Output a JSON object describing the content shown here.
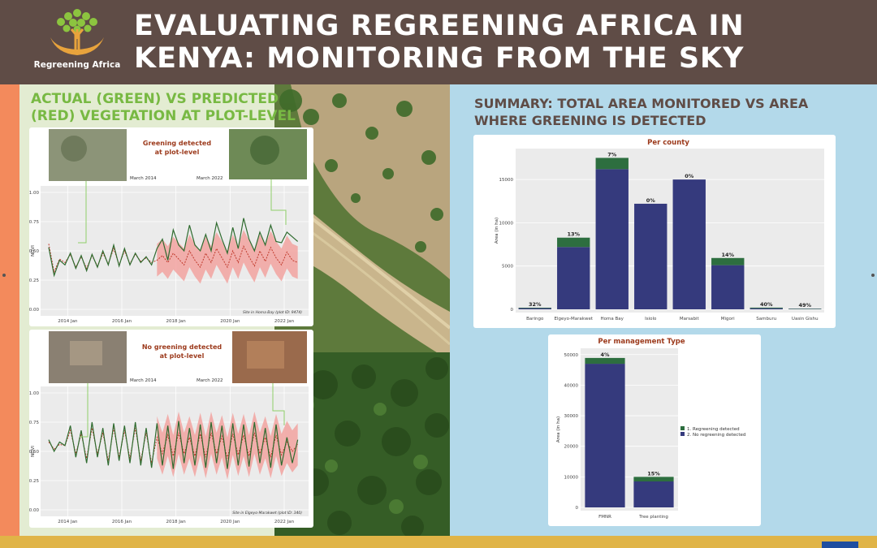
{
  "header": {
    "title_line1": "EVALUATING REGREENING AFRICA IN",
    "title_line2": "KENYA: MONITORING FROM THE SKY",
    "logo_text": "Regreening Africa",
    "logo_icon": "tree-hands-logo",
    "color": "#5f4c46"
  },
  "left_heading": {
    "line1": "ACTUAL (GREEN) VS PREDICTED",
    "line2": "(RED) VEGETATION AT PLOT-LEVEL",
    "color": "#78b943"
  },
  "right_heading": {
    "line1": "SUMMARY: TOTAL AREA MONITORED VS AREA",
    "line2": "WHERE GREENING IS DETECTED",
    "color": "#5f4c46"
  },
  "chart_data": [
    {
      "type": "line",
      "annotation_line1": "Greening detected",
      "annotation_line2": "at plot-level",
      "photo_label_left": "March 2014",
      "photo_label_right": "March 2022",
      "caption": "Site in Homa Bay (plot ID: 9474)",
      "ylabel": "NDVI",
      "ylim": [
        0,
        1
      ],
      "yticks": [
        "0.00",
        "0.25",
        "0.50",
        "0.75",
        "1.00"
      ],
      "xticks": [
        "2014 Jan",
        "2016 Jan",
        "2018 Jan",
        "2020 Jan",
        "2022 Jan"
      ],
      "xlim": [
        2013.0,
        2022.9
      ],
      "series": [
        {
          "color": "#2f6b2f",
          "x": [
            2013.3,
            2013.5,
            2013.7,
            2013.9,
            2014.1,
            2014.3,
            2014.5,
            2014.7,
            2014.9,
            2015.1,
            2015.3,
            2015.5,
            2015.7,
            2015.9,
            2016.1,
            2016.3,
            2016.5,
            2016.7,
            2016.9,
            2017.1,
            2017.3,
            2017.5,
            2017.7,
            2017.9,
            2018.1,
            2018.3,
            2018.5,
            2018.7,
            2018.9,
            2019.1,
            2019.3,
            2019.5,
            2019.7,
            2019.9,
            2020.1,
            2020.3,
            2020.5,
            2020.7,
            2020.9,
            2021.1,
            2021.3,
            2021.5,
            2021.7,
            2021.9,
            2022.1,
            2022.3,
            2022.5
          ],
          "values": [
            0.53,
            0.29,
            0.42,
            0.38,
            0.48,
            0.35,
            0.46,
            0.33,
            0.47,
            0.36,
            0.5,
            0.38,
            0.55,
            0.37,
            0.52,
            0.38,
            0.48,
            0.4,
            0.45,
            0.38,
            0.52,
            0.6,
            0.42,
            0.68,
            0.55,
            0.5,
            0.72,
            0.55,
            0.5,
            0.64,
            0.5,
            0.74,
            0.6,
            0.48,
            0.7,
            0.52,
            0.78,
            0.6,
            0.5,
            0.66,
            0.55,
            0.72,
            0.58,
            0.57,
            0.66,
            0.62,
            0.58
          ]
        },
        {
          "color": "#c0392b",
          "x": [
            2013.3,
            2013.5,
            2013.7,
            2013.9,
            2014.1,
            2014.3,
            2014.5,
            2014.7,
            2014.9,
            2015.1,
            2015.3,
            2015.5,
            2015.7,
            2015.9,
            2016.1,
            2016.3,
            2016.5,
            2016.7,
            2016.9,
            2017.1,
            2017.3,
            2017.5,
            2017.7,
            2017.9,
            2018.1,
            2018.3,
            2018.5,
            2018.7,
            2018.9,
            2019.1,
            2019.3,
            2019.5,
            2019.7,
            2019.9,
            2020.1,
            2020.3,
            2020.5,
            2020.7,
            2020.9,
            2021.1,
            2021.3,
            2021.5,
            2021.7,
            2021.9,
            2022.1,
            2022.3,
            2022.5
          ],
          "values": [
            0.56,
            0.32,
            0.43,
            0.4,
            0.47,
            0.36,
            0.45,
            0.35,
            0.46,
            0.37,
            0.48,
            0.39,
            0.52,
            0.38,
            0.5,
            0.39,
            0.47,
            0.41,
            0.44,
            0.4,
            0.42,
            0.46,
            0.4,
            0.48,
            0.43,
            0.38,
            0.5,
            0.42,
            0.36,
            0.48,
            0.4,
            0.52,
            0.44,
            0.36,
            0.5,
            0.4,
            0.54,
            0.45,
            0.37,
            0.5,
            0.41,
            0.53,
            0.44,
            0.38,
            0.49,
            0.42,
            0.4
          ]
        }
      ],
      "band_start": 2017.2,
      "band_halfwidth": 0.14
    },
    {
      "type": "line",
      "annotation_line1": "No greening detected",
      "annotation_line2": "at plot-level",
      "photo_label_left": "March 2014",
      "photo_label_right": "March 2022",
      "caption": "Site in Elgeyo-Marakwet (plot ID: 340)",
      "ylabel": "NDVI",
      "ylim": [
        0,
        1
      ],
      "yticks": [
        "0.00",
        "0.25",
        "0.50",
        "0.75",
        "1.00"
      ],
      "xticks": [
        "2014 Jan",
        "2016 Jan",
        "2018 Jan",
        "2020 Jan",
        "2022 Jan"
      ],
      "xlim": [
        2013.0,
        2022.9
      ],
      "series": [
        {
          "color": "#2f6b2f",
          "x": [
            2013.3,
            2013.5,
            2013.7,
            2013.9,
            2014.1,
            2014.3,
            2014.5,
            2014.7,
            2014.9,
            2015.1,
            2015.3,
            2015.5,
            2015.7,
            2015.9,
            2016.1,
            2016.3,
            2016.5,
            2016.7,
            2016.9,
            2017.1,
            2017.3,
            2017.5,
            2017.7,
            2017.9,
            2018.1,
            2018.3,
            2018.5,
            2018.7,
            2018.9,
            2019.1,
            2019.3,
            2019.5,
            2019.7,
            2019.9,
            2020.1,
            2020.3,
            2020.5,
            2020.7,
            2020.9,
            2021.1,
            2021.3,
            2021.5,
            2021.7,
            2021.9,
            2022.1,
            2022.3,
            2022.5
          ],
          "values": [
            0.6,
            0.5,
            0.58,
            0.55,
            0.72,
            0.45,
            0.68,
            0.4,
            0.75,
            0.45,
            0.7,
            0.38,
            0.74,
            0.42,
            0.72,
            0.4,
            0.75,
            0.38,
            0.7,
            0.36,
            0.74,
            0.38,
            0.72,
            0.35,
            0.76,
            0.4,
            0.7,
            0.38,
            0.73,
            0.36,
            0.75,
            0.4,
            0.72,
            0.35,
            0.74,
            0.38,
            0.73,
            0.37,
            0.75,
            0.4,
            0.7,
            0.36,
            0.73,
            0.38,
            0.62,
            0.4,
            0.6
          ]
        },
        {
          "color": "#c0392b",
          "x": [
            2013.3,
            2013.5,
            2013.7,
            2013.9,
            2014.1,
            2014.3,
            2014.5,
            2014.7,
            2014.9,
            2015.1,
            2015.3,
            2015.5,
            2015.7,
            2015.9,
            2016.1,
            2016.3,
            2016.5,
            2016.7,
            2016.9,
            2017.1,
            2017.3,
            2017.5,
            2017.7,
            2017.9,
            2018.1,
            2018.3,
            2018.5,
            2018.7,
            2018.9,
            2019.1,
            2019.3,
            2019.5,
            2019.7,
            2019.9,
            2020.1,
            2020.3,
            2020.5,
            2020.7,
            2020.9,
            2021.1,
            2021.3,
            2021.5,
            2021.7,
            2021.9,
            2022.1,
            2022.3,
            2022.5
          ],
          "values": [
            0.58,
            0.52,
            0.56,
            0.55,
            0.68,
            0.48,
            0.65,
            0.44,
            0.7,
            0.48,
            0.66,
            0.42,
            0.7,
            0.45,
            0.68,
            0.44,
            0.7,
            0.42,
            0.66,
            0.4,
            0.62,
            0.48,
            0.64,
            0.46,
            0.66,
            0.48,
            0.62,
            0.46,
            0.65,
            0.45,
            0.66,
            0.48,
            0.63,
            0.44,
            0.65,
            0.47,
            0.64,
            0.46,
            0.66,
            0.48,
            0.62,
            0.45,
            0.64,
            0.47,
            0.58,
            0.5,
            0.56
          ]
        }
      ],
      "band_start": 2017.2,
      "band_halfwidth": 0.18
    },
    {
      "type": "bar",
      "title": "Per county",
      "ylabel": "Area (in ha)",
      "yticks": [
        "0",
        "5000",
        "10000",
        "15000"
      ],
      "ylim": [
        0,
        18200
      ],
      "categories": [
        "Baringo",
        "Elgeyo-Marakwet",
        "Homa Bay",
        "Isiolo",
        "Marsabit",
        "Migori",
        "Samburu",
        "Uasin Gishu"
      ],
      "labels": [
        "32%",
        "13%",
        "7%",
        "0%",
        "0%",
        "14%",
        "40%",
        "49%"
      ],
      "series": [
        {
          "name": "1. Regreening detected",
          "color": "#2d6e3f",
          "values": [
            60,
            1080,
            1300,
            0,
            0,
            830,
            80,
            40
          ]
        },
        {
          "name": "2. No regreening detected",
          "color": "#353a7d",
          "values": [
            130,
            7200,
            16200,
            12200,
            15000,
            5100,
            120,
            40
          ]
        }
      ]
    },
    {
      "type": "bar",
      "title": "Per management Type",
      "ylabel": "Area (in ha)",
      "yticks": [
        "0",
        "10000",
        "20000",
        "30000",
        "40000",
        "50000"
      ],
      "ylim": [
        0,
        51000
      ],
      "categories": [
        "FMNR",
        "Tree planting"
      ],
      "labels": [
        "4%",
        "15%"
      ],
      "legend": [
        "1. Regreening detected",
        "2. No regreening detected"
      ],
      "series": [
        {
          "name": "1. Regreening detected",
          "color": "#2d6e3f",
          "values": [
            1900,
            1500
          ]
        },
        {
          "name": "2. No regreening detected",
          "color": "#353a7d",
          "values": [
            47000,
            8500
          ]
        }
      ]
    }
  ]
}
